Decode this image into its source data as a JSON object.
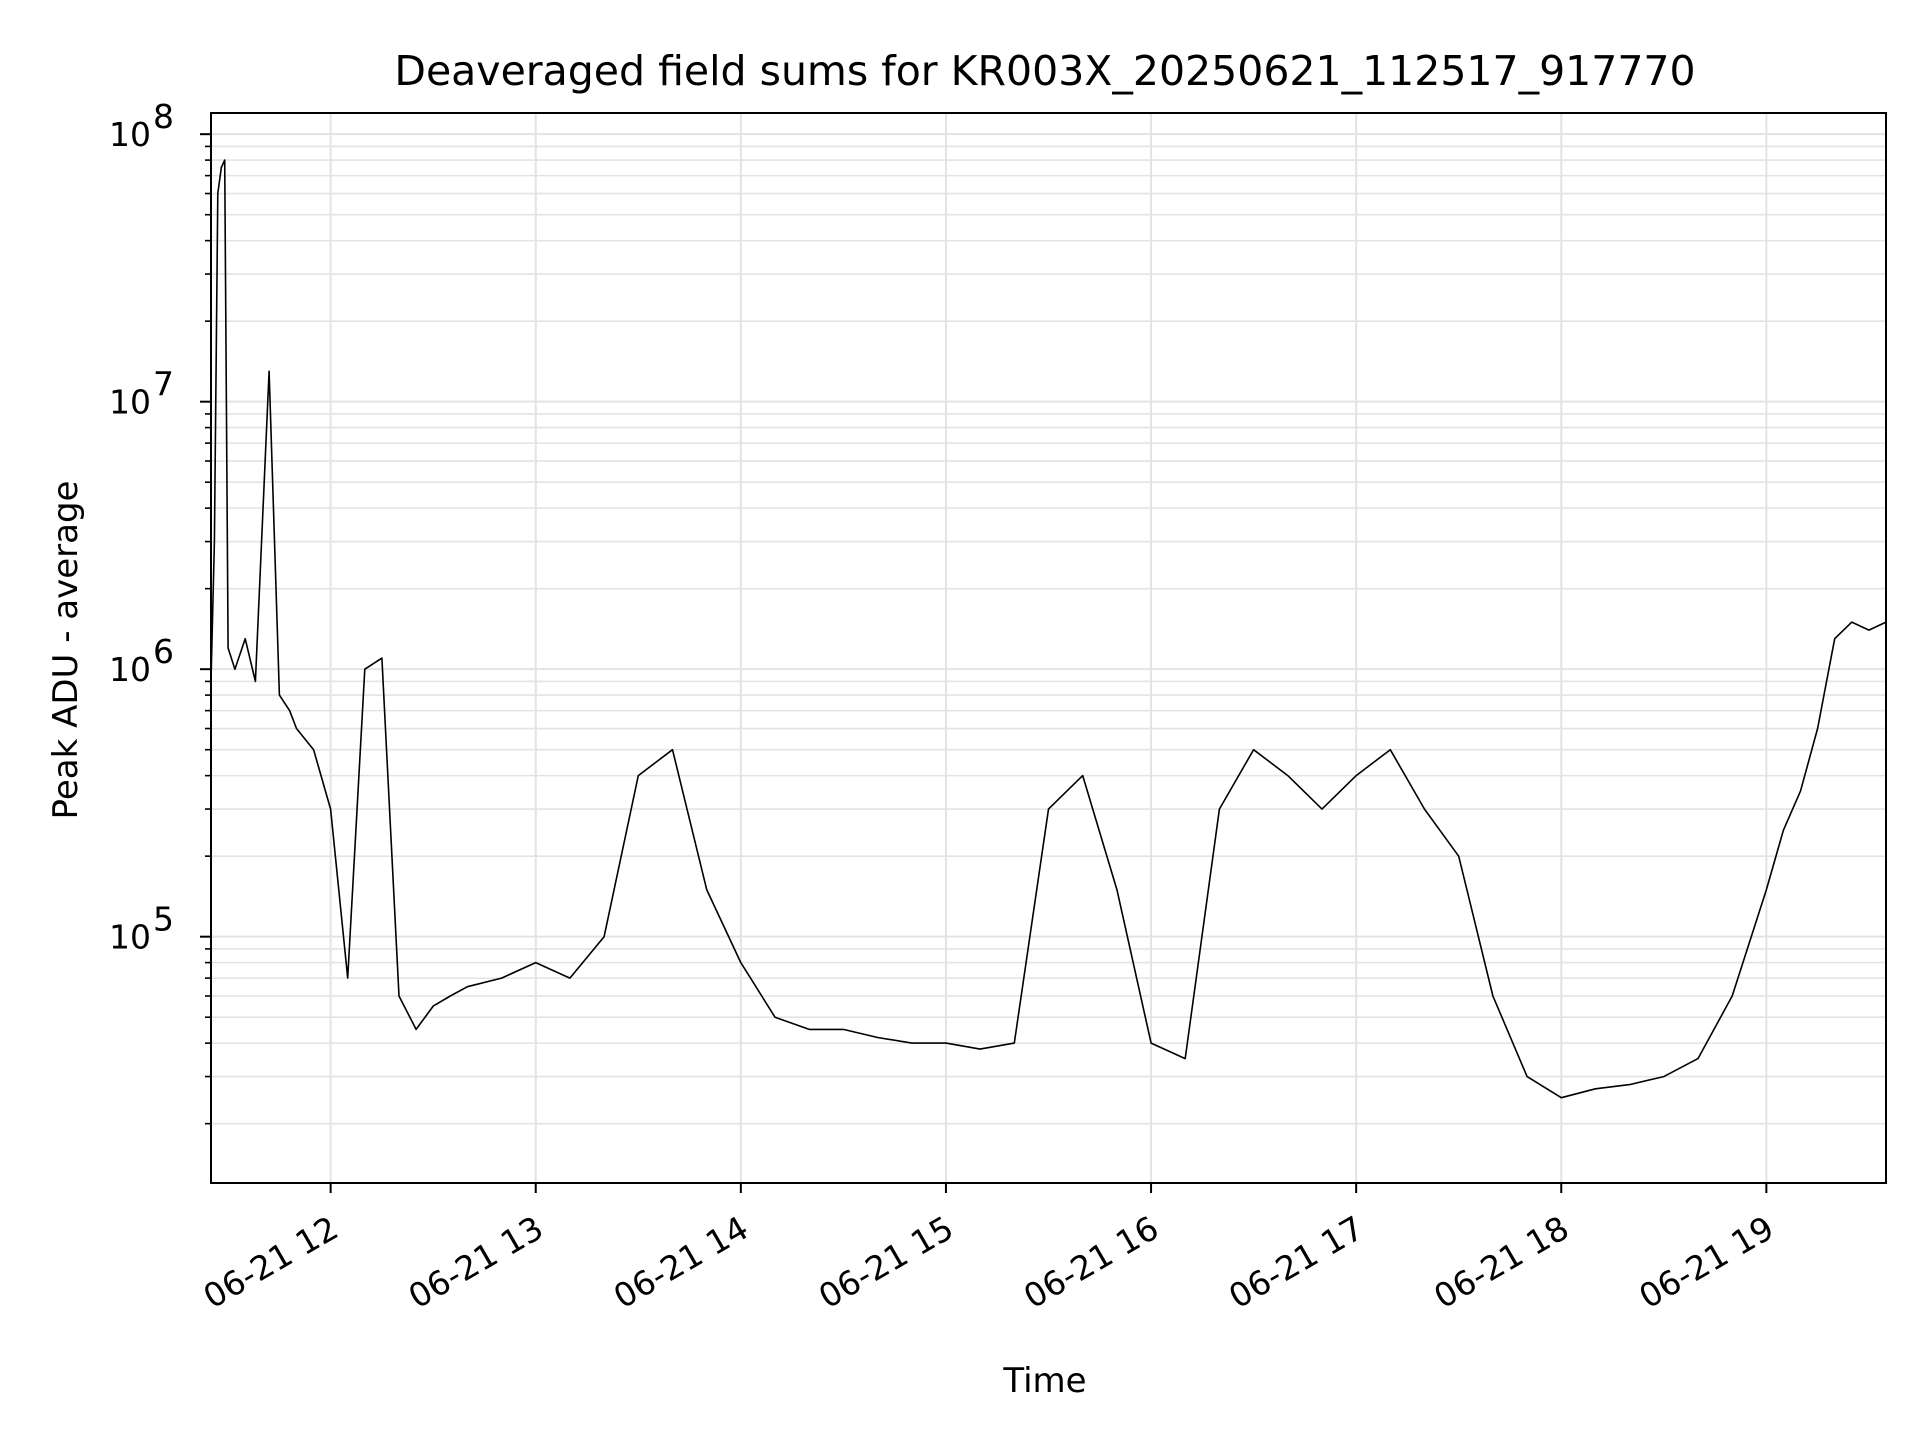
{
  "chart_data": {
    "type": "line",
    "title": "Deaveraged field sums for KR003X_20250621_112517_917770",
    "xlabel": "Time",
    "ylabel": "Peak ADU - average",
    "x_axis": {
      "kind": "time",
      "range": [
        "06-21 11:25",
        "06-21 19:35"
      ],
      "ticks": [
        {
          "at": "06-21 12:00",
          "label": "06-21 12"
        },
        {
          "at": "06-21 13:00",
          "label": "06-21 13"
        },
        {
          "at": "06-21 14:00",
          "label": "06-21 14"
        },
        {
          "at": "06-21 15:00",
          "label": "06-21 15"
        },
        {
          "at": "06-21 16:00",
          "label": "06-21 16"
        },
        {
          "at": "06-21 17:00",
          "label": "06-21 17"
        },
        {
          "at": "06-21 18:00",
          "label": "06-21 18"
        },
        {
          "at": "06-21 19:00",
          "label": "06-21 19"
        }
      ]
    },
    "y_axis": {
      "scale": "log",
      "range": [
        12000,
        120000000
      ],
      "ticks": [
        {
          "value": 100000,
          "base": "10",
          "exp": "5"
        },
        {
          "value": 1000000,
          "base": "10",
          "exp": "6"
        },
        {
          "value": 10000000,
          "base": "10",
          "exp": "7"
        },
        {
          "value": 100000000,
          "base": "10",
          "exp": "8"
        }
      ]
    },
    "grid": true,
    "line_color": "#000000",
    "series": [
      {
        "x": [
          "06-21 11:25",
          "06-21 11:26",
          "06-21 11:27",
          "06-21 11:28",
          "06-21 11:29",
          "06-21 11:30",
          "06-21 11:32",
          "06-21 11:35",
          "06-21 11:38",
          "06-21 11:42",
          "06-21 11:45",
          "06-21 11:48",
          "06-21 11:50",
          "06-21 11:55",
          "06-21 12:00",
          "06-21 12:05",
          "06-21 12:10",
          "06-21 12:15",
          "06-21 12:20",
          "06-21 12:25",
          "06-21 12:30",
          "06-21 12:35",
          "06-21 12:40",
          "06-21 12:50",
          "06-21 13:00",
          "06-21 13:10",
          "06-21 13:20",
          "06-21 13:30",
          "06-21 13:40",
          "06-21 13:50",
          "06-21 14:00",
          "06-21 14:10",
          "06-21 14:20",
          "06-21 14:30",
          "06-21 14:40",
          "06-21 14:50",
          "06-21 15:00",
          "06-21 15:10",
          "06-21 15:20",
          "06-21 15:30",
          "06-21 15:40",
          "06-21 15:50",
          "06-21 16:00",
          "06-21 16:10",
          "06-21 16:20",
          "06-21 16:30",
          "06-21 16:40",
          "06-21 16:50",
          "06-21 17:00",
          "06-21 17:10",
          "06-21 17:20",
          "06-21 17:30",
          "06-21 17:40",
          "06-21 17:50",
          "06-21 18:00",
          "06-21 18:10",
          "06-21 18:20",
          "06-21 18:30",
          "06-21 18:40",
          "06-21 18:50",
          "06-21 19:00",
          "06-21 19:05",
          "06-21 19:10",
          "06-21 19:15",
          "06-21 19:20",
          "06-21 19:25",
          "06-21 19:30",
          "06-21 19:35"
        ],
        "y": [
          900000,
          3000000,
          60000000,
          75000000,
          80000000,
          1200000,
          1000000,
          1300000,
          900000,
          13000000,
          800000,
          700000,
          600000,
          500000,
          300000,
          70000,
          1000000,
          1100000,
          60000,
          45000,
          55000,
          60000,
          65000,
          70000,
          80000,
          70000,
          100000,
          400000,
          500000,
          150000,
          80000,
          50000,
          45000,
          45000,
          42000,
          40000,
          40000,
          38000,
          40000,
          300000,
          400000,
          150000,
          40000,
          35000,
          300000,
          500000,
          400000,
          300000,
          400000,
          500000,
          300000,
          200000,
          60000,
          30000,
          25000,
          27000,
          28000,
          30000,
          35000,
          60000,
          150000,
          250000,
          350000,
          600000,
          1300000,
          1500000,
          1400000,
          1500000
        ]
      }
    ]
  }
}
